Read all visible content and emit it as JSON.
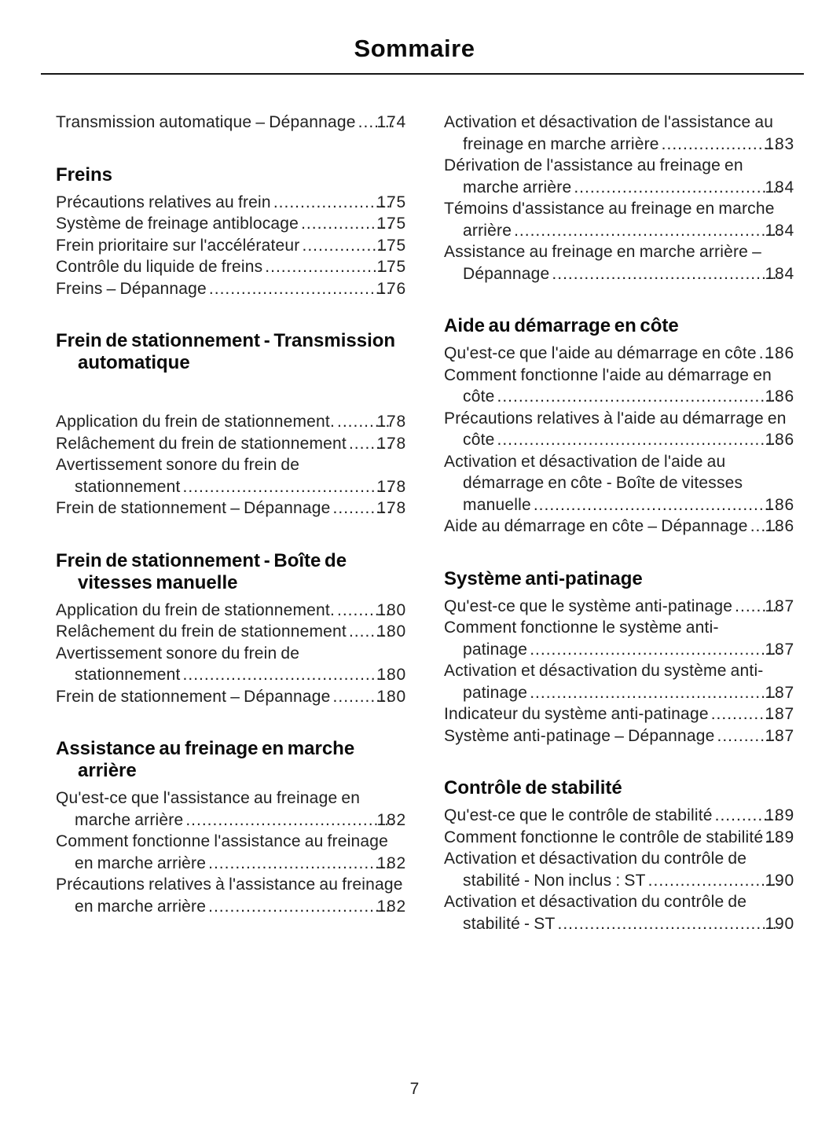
{
  "title": "Sommaire",
  "page_number": "7",
  "colors": {
    "text": "#212121",
    "heading": "#0b0b0b",
    "rule": "#161616",
    "background": "#ffffff"
  },
  "columns": [
    {
      "sections": [
        {
          "heading": null,
          "entries": [
            {
              "title": "Transmission automatique – Dépannage",
              "page": "174"
            }
          ]
        },
        {
          "heading": "Freins",
          "entries": [
            {
              "title": "Précautions relatives au frein",
              "page": "175"
            },
            {
              "title": "Système de freinage antiblocage",
              "page": "175"
            },
            {
              "title": "Frein prioritaire sur l'accélérateur",
              "page": "175"
            },
            {
              "title": "Contrôle du liquide de freins",
              "page": "175"
            },
            {
              "title": "Freins – Dépannage",
              "page": "176"
            }
          ]
        },
        {
          "heading": "Frein de stationnement - Transmission automatique",
          "spacer_after_heading": true,
          "entries": [
            {
              "title": "Application du frein de stationnement.",
              "page": "178"
            },
            {
              "title": "Relâchement du frein de stationnement",
              "page": "178"
            },
            {
              "title": "Avertissement sonore du frein de stationnement",
              "page": "178"
            },
            {
              "title": "Frein de stationnement – Dépannage",
              "page": "178"
            }
          ]
        },
        {
          "heading": "Frein de stationnement - Boîte de vitesses manuelle",
          "entries": [
            {
              "title": "Application du frein de stationnement.",
              "page": "180"
            },
            {
              "title": "Relâchement du frein de stationnement",
              "page": "180"
            },
            {
              "title": "Avertissement sonore du frein de stationnement",
              "page": "180"
            },
            {
              "title": "Frein de stationnement – Dépannage",
              "page": "180"
            }
          ]
        },
        {
          "heading": "Assistance au freinage en marche arrière",
          "entries": [
            {
              "title": "Qu'est-ce que l'assistance au freinage en marche arrière",
              "page": "182"
            },
            {
              "title": "Comment fonctionne l'assistance au freinage en marche arrière",
              "page": "182"
            },
            {
              "title": "Précautions relatives à l'assistance au freinage en marche arrière",
              "page": "182"
            }
          ]
        }
      ]
    },
    {
      "sections": [
        {
          "heading": null,
          "entries": [
            {
              "title": "Activation et désactivation de l'assistance au freinage en marche arrière",
              "page": "183"
            },
            {
              "title": "Dérivation de l'assistance au freinage en marche arrière",
              "page": "184"
            },
            {
              "title": "Témoins d'assistance au freinage en marche arrière",
              "page": "184"
            },
            {
              "title": "Assistance au freinage en marche arrière – Dépannage",
              "page": "184"
            }
          ]
        },
        {
          "heading": "Aide au démarrage en côte",
          "entries": [
            {
              "title": "Qu'est-ce que l'aide au démarrage en côte",
              "page": "186"
            },
            {
              "title": "Comment fonctionne l'aide au démarrage en côte",
              "page": "186"
            },
            {
              "title": "Précautions relatives à l'aide au démarrage en côte",
              "page": "186"
            },
            {
              "title": "Activation et désactivation de l'aide au démarrage en côte - Boîte de vitesses manuelle",
              "page": "186"
            },
            {
              "title": "Aide au démarrage en côte – Dépannage",
              "page": "186"
            }
          ]
        },
        {
          "heading": "Système anti-patinage",
          "entries": [
            {
              "title": "Qu'est-ce que le système anti-patinage",
              "page": "187"
            },
            {
              "title": "Comment fonctionne le système anti-patinage",
              "page": "187"
            },
            {
              "title": "Activation et désactivation du système anti-patinage",
              "page": "187"
            },
            {
              "title": "Indicateur du système anti-patinage",
              "page": "187"
            },
            {
              "title": "Système anti-patinage – Dépannage",
              "page": "187"
            }
          ]
        },
        {
          "heading": "Contrôle de stabilité",
          "entries": [
            {
              "title": "Qu'est-ce que le contrôle de stabilité",
              "page": "189"
            },
            {
              "title": "Comment fonctionne le contrôle de stabilité",
              "page": "189"
            },
            {
              "title": "Activation et désactivation du contrôle de stabilité - Non inclus : ST",
              "page": "190"
            },
            {
              "title": "Activation et désactivation du contrôle de stabilité - ST",
              "page": "190"
            }
          ]
        }
      ]
    }
  ]
}
